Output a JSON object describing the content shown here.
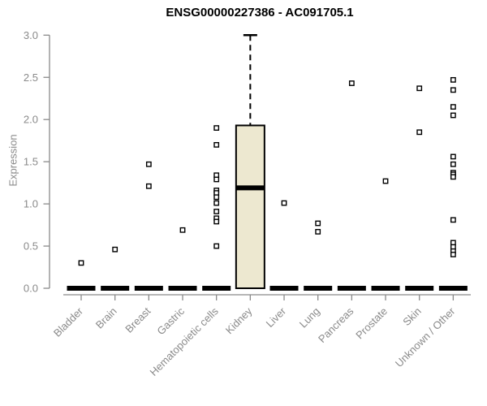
{
  "colors": {
    "axis": "#8a8a8a",
    "box_fill": "#ede8d0",
    "data": "#000000",
    "background": "#ffffff"
  },
  "chart_data": {
    "type": "boxplot",
    "title": "ENSG00000227386 - AC091705.1",
    "ylabel": "Expression",
    "xlabel": "",
    "ylim": [
      0.0,
      3.0
    ],
    "ytick_labels": [
      "0.0",
      "0.5",
      "1.0",
      "1.5",
      "2.0",
      "2.5",
      "3.0"
    ],
    "yticks": [
      0.0,
      0.5,
      1.0,
      1.5,
      2.0,
      2.5,
      3.0
    ],
    "grid": false,
    "legend": null,
    "x_label_rotation": 45,
    "categories": [
      "Bladder",
      "Brain",
      "Breast",
      "Gastric",
      "Hematopoietic cells",
      "Kidney",
      "Liver",
      "Lung",
      "Pancreas",
      "Prostate",
      "Skin",
      "Unknown / Other"
    ],
    "boxes": [
      {
        "category": "Bladder",
        "q1": 0,
        "median": 0,
        "q3": 0,
        "whisker_low": 0,
        "whisker_high": 0,
        "outliers": [
          0.3
        ]
      },
      {
        "category": "Brain",
        "q1": 0,
        "median": 0,
        "q3": 0,
        "whisker_low": 0,
        "whisker_high": 0,
        "outliers": [
          0.46
        ]
      },
      {
        "category": "Breast",
        "q1": 0,
        "median": 0,
        "q3": 0,
        "whisker_low": 0,
        "whisker_high": 0,
        "outliers": [
          1.47,
          1.21
        ]
      },
      {
        "category": "Gastric",
        "q1": 0,
        "median": 0,
        "q3": 0,
        "whisker_low": 0,
        "whisker_high": 0,
        "outliers": [
          0.69
        ]
      },
      {
        "category": "Hematopoietic cells",
        "q1": 0,
        "median": 0,
        "q3": 0,
        "whisker_low": 0,
        "whisker_high": 0,
        "outliers": [
          1.9,
          1.7,
          1.34,
          1.29,
          1.16,
          1.13,
          1.08,
          1.01,
          0.91,
          0.83,
          0.79,
          0.5
        ]
      },
      {
        "category": "Kidney",
        "q1": 0,
        "median": 1.19,
        "q3": 1.93,
        "whisker_low": 0,
        "whisker_high": 3.0,
        "outliers": []
      },
      {
        "category": "Liver",
        "q1": 0,
        "median": 0,
        "q3": 0,
        "whisker_low": 0,
        "whisker_high": 0,
        "outliers": [
          1.01
        ]
      },
      {
        "category": "Lung",
        "q1": 0,
        "median": 0,
        "q3": 0,
        "whisker_low": 0,
        "whisker_high": 0,
        "outliers": [
          0.77,
          0.67
        ]
      },
      {
        "category": "Pancreas",
        "q1": 0,
        "median": 0,
        "q3": 0,
        "whisker_low": 0,
        "whisker_high": 0,
        "outliers": [
          2.43
        ]
      },
      {
        "category": "Prostate",
        "q1": 0,
        "median": 0,
        "q3": 0,
        "whisker_low": 0,
        "whisker_high": 0,
        "outliers": [
          1.27
        ]
      },
      {
        "category": "Skin",
        "q1": 0,
        "median": 0,
        "q3": 0,
        "whisker_low": 0,
        "whisker_high": 0,
        "outliers": [
          2.37,
          1.85
        ]
      },
      {
        "category": "Unknown / Other",
        "q1": 0,
        "median": 0,
        "q3": 0,
        "whisker_low": 0,
        "whisker_high": 0,
        "outliers": [
          2.47,
          2.35,
          2.15,
          2.05,
          1.56,
          1.47,
          1.37,
          1.35,
          1.32,
          0.81,
          0.54,
          0.49,
          0.44,
          0.4
        ]
      }
    ]
  }
}
